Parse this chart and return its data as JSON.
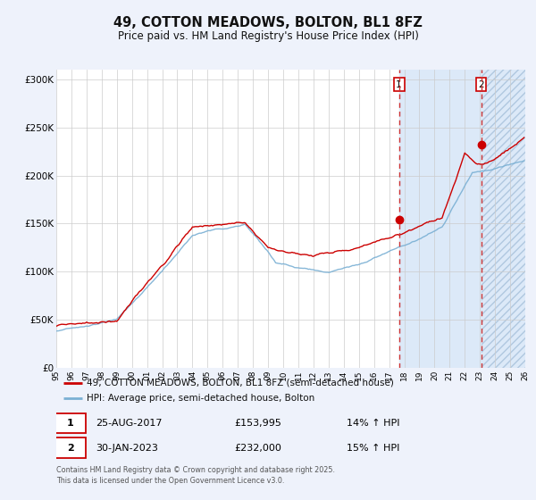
{
  "title": "49, COTTON MEADOWS, BOLTON, BL1 8FZ",
  "subtitle": "Price paid vs. HM Land Registry's House Price Index (HPI)",
  "red_label": "49, COTTON MEADOWS, BOLTON, BL1 8FZ (semi-detached house)",
  "blue_label": "HPI: Average price, semi-detached house, Bolton",
  "annotation1_date": "25-AUG-2017",
  "annotation1_price": "£153,995",
  "annotation1_hpi": "14% ↑ HPI",
  "annotation2_date": "30-JAN-2023",
  "annotation2_price": "£232,000",
  "annotation2_hpi": "15% ↑ HPI",
  "point1_x": 2017.65,
  "point1_y": 153995,
  "point2_x": 2023.08,
  "point2_y": 232000,
  "xlim": [
    1995,
    2026
  ],
  "ylim": [
    0,
    310000
  ],
  "yticks": [
    0,
    50000,
    100000,
    150000,
    200000,
    250000,
    300000
  ],
  "ytick_labels": [
    "£0",
    "£50K",
    "£100K",
    "£150K",
    "£200K",
    "£250K",
    "£300K"
  ],
  "xticks": [
    1995,
    1996,
    1997,
    1998,
    1999,
    2000,
    2001,
    2002,
    2003,
    2004,
    2005,
    2006,
    2007,
    2008,
    2009,
    2010,
    2011,
    2012,
    2013,
    2014,
    2015,
    2016,
    2017,
    2018,
    2019,
    2020,
    2021,
    2022,
    2023,
    2024,
    2025,
    2026
  ],
  "background_color": "#eef2fb",
  "plot_bg": "#ffffff",
  "grid_color": "#cccccc",
  "red_color": "#cc0000",
  "blue_color": "#7ab0d4",
  "shade_color": "#dce9f8",
  "footer": "Contains HM Land Registry data © Crown copyright and database right 2025.\nThis data is licensed under the Open Government Licence v3.0."
}
